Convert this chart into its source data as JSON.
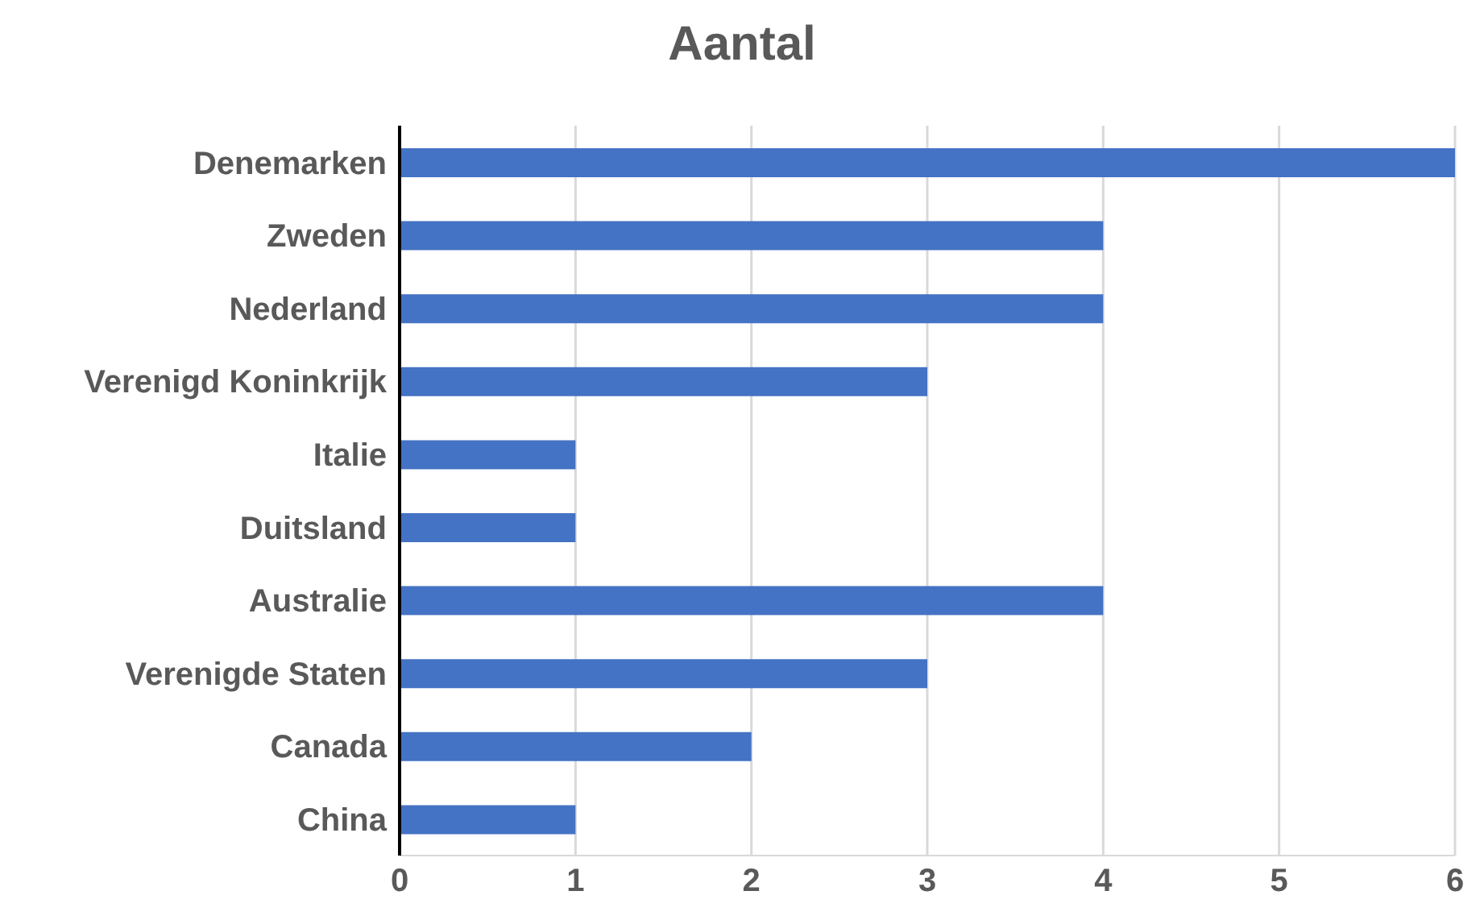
{
  "chart_data": {
    "type": "bar",
    "orientation": "horizontal",
    "title": "Aantal",
    "categories": [
      "Denemarken",
      "Zweden",
      "Nederland",
      "Verenigd Koninkrijk",
      "Italie",
      "Duitsland",
      "Australie",
      "Verenigde Staten",
      "Canada",
      "China"
    ],
    "values": [
      6,
      4,
      4,
      3,
      1,
      1,
      4,
      3,
      2,
      1
    ],
    "color": "#4472c4",
    "xlim": [
      0,
      6
    ],
    "xticks": [
      0,
      1,
      2,
      3,
      4,
      5,
      6
    ],
    "grid": "x"
  }
}
